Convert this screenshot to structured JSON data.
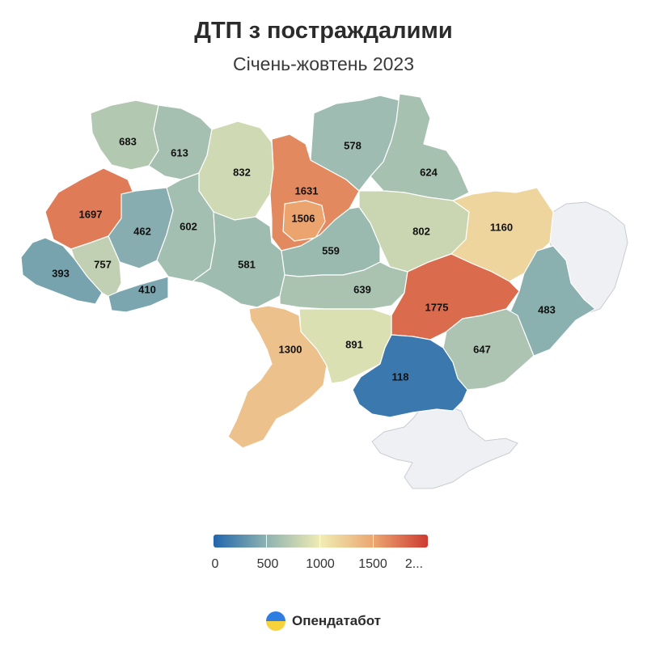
{
  "title": "ДТП з постраждалими",
  "subtitle": "Січень-жовтень 2023",
  "brand": {
    "name": "Опендатабот",
    "logo_icon": "opendatabot-logo-icon"
  },
  "colors": {
    "low": "#2166ac",
    "mid_low": "#8fb3b0",
    "mid": "#f0ecb4",
    "mid_high": "#eba56f",
    "high": "#cd3b32",
    "nodata": "#eef0f4"
  },
  "legend": {
    "min": 0,
    "max": 2000,
    "labels": [
      "0",
      "500",
      "1000",
      "1500",
      "2..."
    ]
  },
  "chart_data": {
    "type": "choropleth",
    "regions": [
      {
        "id": "volyn",
        "value": 683
      },
      {
        "id": "rivne",
        "value": 613
      },
      {
        "id": "zhytomyr",
        "value": 832
      },
      {
        "id": "kyiv-oblast",
        "value": 1631
      },
      {
        "id": "kyiv-city",
        "value": 1506
      },
      {
        "id": "chernihiv",
        "value": 578
      },
      {
        "id": "sumy",
        "value": 624
      },
      {
        "id": "lviv",
        "value": 1697
      },
      {
        "id": "ternopil",
        "value": 462
      },
      {
        "id": "khmelnytskyi",
        "value": 602
      },
      {
        "id": "poltava",
        "value": 802
      },
      {
        "id": "kharkiv",
        "value": 1160
      },
      {
        "id": "zakarpattia",
        "value": 393
      },
      {
        "id": "ivano-frankivsk",
        "value": 757
      },
      {
        "id": "chernivtsi",
        "value": 410
      },
      {
        "id": "vinnytsia",
        "value": 581
      },
      {
        "id": "cherkasy",
        "value": 559
      },
      {
        "id": "kirovohrad",
        "value": 639
      },
      {
        "id": "dnipropetrovsk",
        "value": 1775
      },
      {
        "id": "luhansk",
        "value": 483
      },
      {
        "id": "odesa",
        "value": 1300
      },
      {
        "id": "mykolaiv",
        "value": 891
      },
      {
        "id": "zaporizhzhia",
        "value": 647
      },
      {
        "id": "kherson",
        "value": 118
      }
    ]
  }
}
